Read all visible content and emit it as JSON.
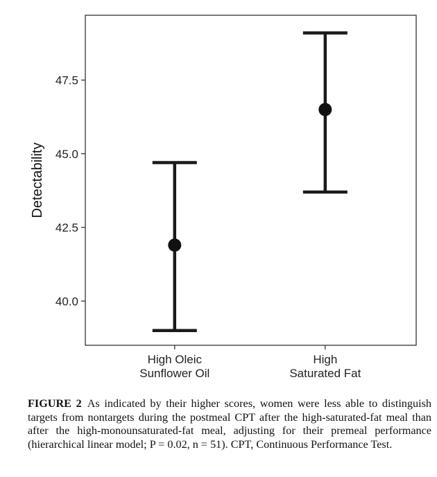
{
  "chart_data": {
    "type": "errorbar",
    "title": "",
    "xlabel": "",
    "ylabel": "Detectability",
    "categories": [
      [
        "High Oleic",
        "Sunflower Oil"
      ],
      [
        "High",
        "Saturated Fat"
      ]
    ],
    "points": [
      {
        "category": "High Oleic Sunflower Oil",
        "mean": 41.9,
        "lower": 39.0,
        "upper": 44.7
      },
      {
        "category": "High Saturated Fat",
        "mean": 46.5,
        "lower": 43.7,
        "upper": 49.1
      }
    ],
    "yticks": [
      40.0,
      42.5,
      45.0,
      47.5
    ],
    "ytick_labels": [
      "40.0",
      "42.5",
      "45.0",
      "47.5"
    ],
    "ylim": [
      38.5,
      49.7
    ],
    "grid": false,
    "legend": "none"
  },
  "caption": {
    "label": "FIGURE 2",
    "text": "As indicated by their higher scores, women were less able to distinguish targets from nontargets during the postmeal CPT after the high-saturated-fat meal than after the high-monounsaturated-fat meal, adjusting for their premeal performance (hierarchical linear model; P = 0.02, n = 51). CPT, Continuous Performance Test."
  }
}
